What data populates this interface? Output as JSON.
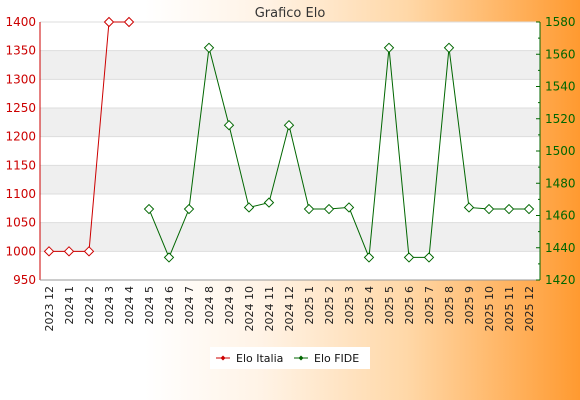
{
  "chart_data": {
    "type": "line",
    "title": "Grafico Elo",
    "xlabel": "",
    "ylabel": "",
    "categories": [
      "2023 12",
      "2024 1",
      "2024 2",
      "2024 3",
      "2024 4",
      "2024 5",
      "2024 6",
      "2024 7",
      "2024 8",
      "2024 9",
      "2024 10",
      "2024 11",
      "2024 12",
      "2025 1",
      "2025 2",
      "2025 3",
      "2025 4",
      "2025 5",
      "2025 6",
      "2025 7",
      "2025 8",
      "2025 9",
      "2025 10",
      "2025 11",
      "2025 12"
    ],
    "y_left": {
      "lim": [
        950,
        1400
      ],
      "ticks": [
        950,
        1000,
        1050,
        1100,
        1150,
        1200,
        1250,
        1300,
        1350,
        1400
      ],
      "color": "#cc0000"
    },
    "y_right": {
      "lim": [
        1420,
        1580
      ],
      "ticks": [
        1420,
        1440,
        1460,
        1480,
        1500,
        1520,
        1540,
        1560,
        1580
      ],
      "color": "#006600"
    },
    "grid": "horizontal bands",
    "legend_position": "bottom",
    "series": [
      {
        "name": "Elo Italia",
        "axis": "left",
        "color": "#cc0000",
        "values": [
          1000,
          1000,
          1000,
          1400,
          1400,
          null,
          null,
          null,
          null,
          null,
          null,
          null,
          null,
          null,
          null,
          null,
          null,
          null,
          null,
          null,
          null,
          null,
          null,
          null,
          null
        ]
      },
      {
        "name": "Elo FIDE",
        "axis": "right",
        "color": "#006600",
        "values": [
          null,
          null,
          null,
          null,
          null,
          1464,
          1434,
          1464,
          1564,
          1516,
          1465,
          1468,
          1516,
          1464,
          1464,
          1465,
          1434,
          1564,
          1434,
          1434,
          1564,
          1465,
          1464,
          1464,
          1464
        ]
      }
    ]
  }
}
